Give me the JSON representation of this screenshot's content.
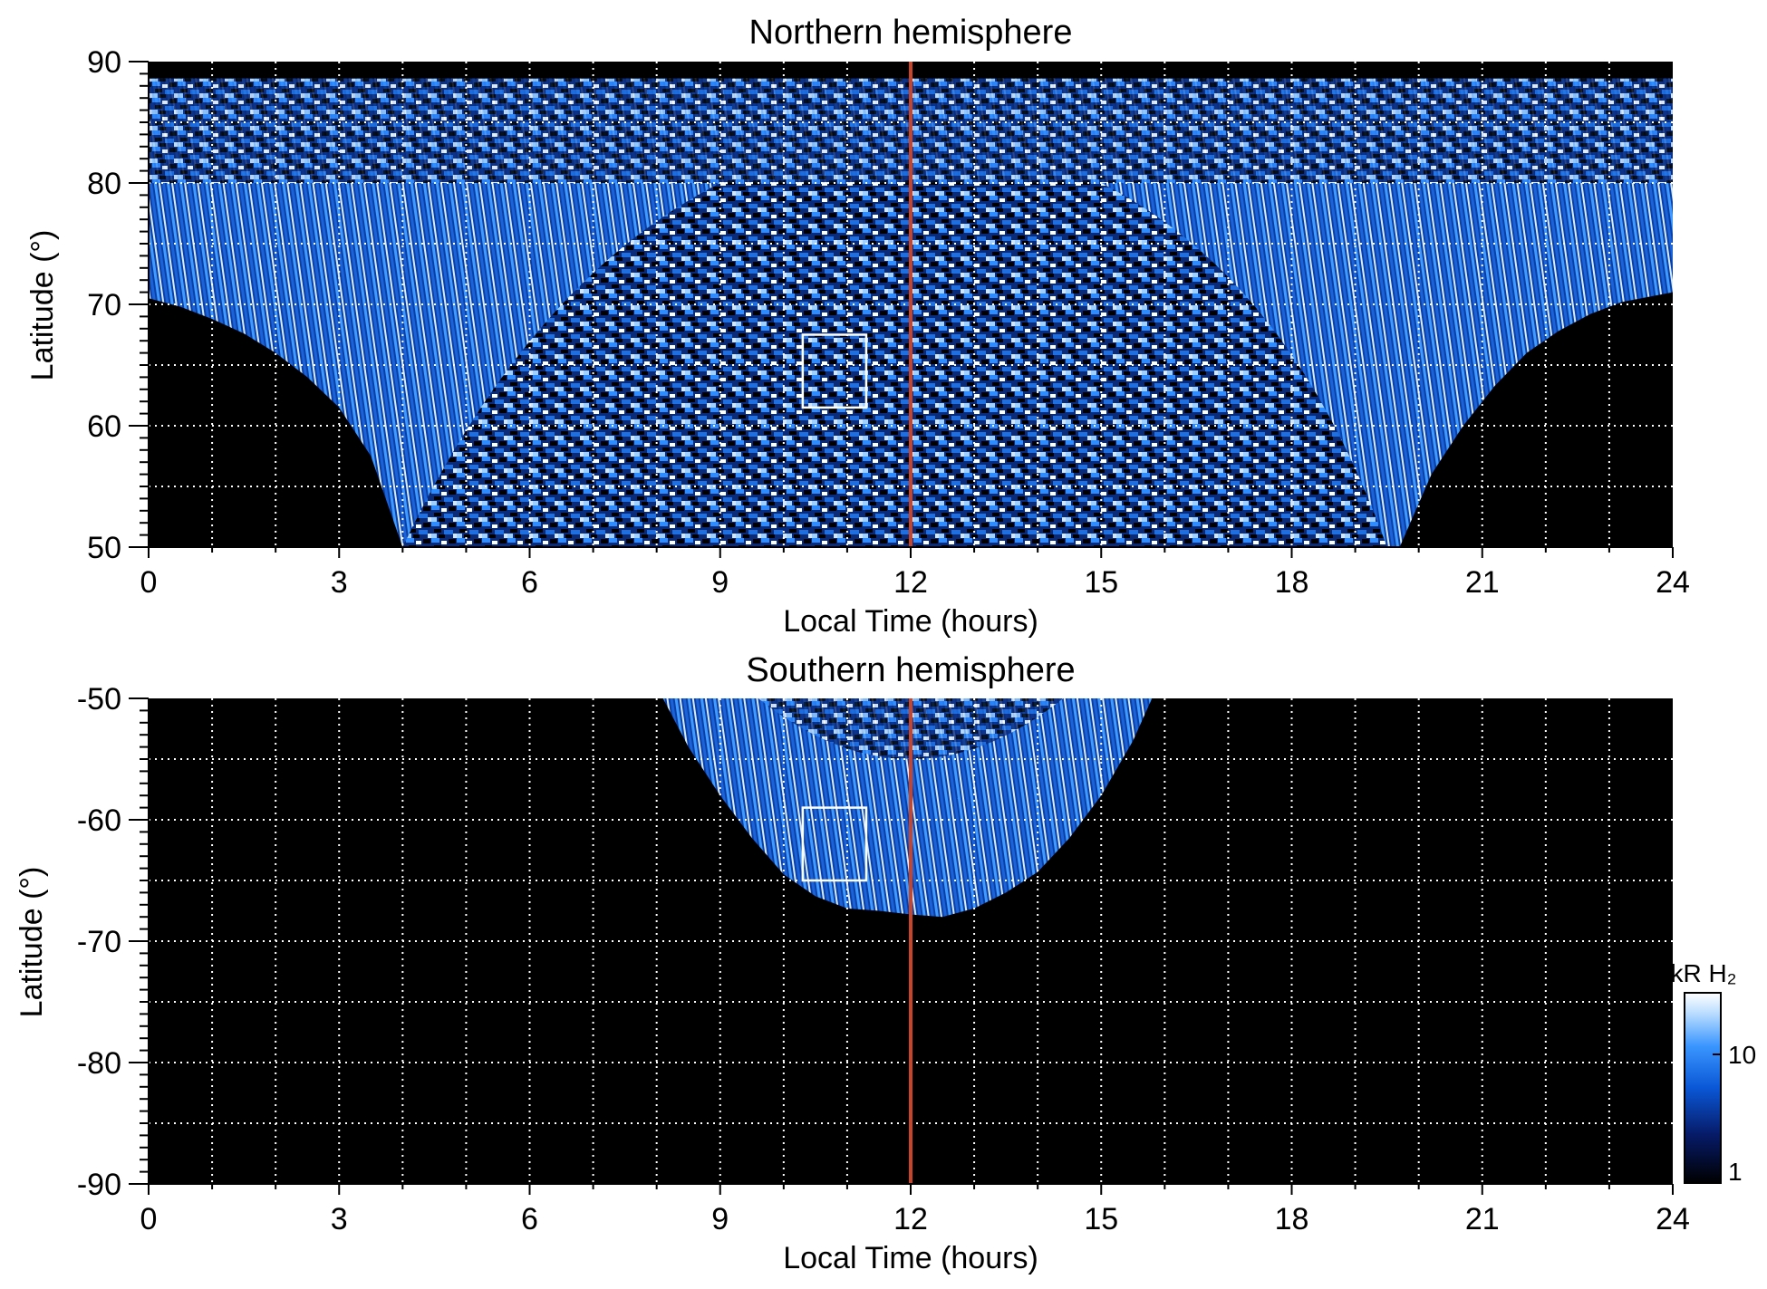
{
  "figure": {
    "x_tick_labels": [
      "0",
      "3",
      "6",
      "9",
      "12",
      "15",
      "18",
      "21",
      "24"
    ],
    "colorbar": {
      "label": "kR H₂",
      "tick_labels": [
        "10",
        "1"
      ],
      "scale": "log",
      "range": [
        1,
        30
      ],
      "colors": [
        "#000000",
        "#061a66",
        "#0a57d6",
        "#3a96ff",
        "#bfe0ff",
        "#ffffff"
      ]
    },
    "reference_line": {
      "x": 12,
      "color": "#c8452a"
    },
    "gridlines": {
      "style": "dotted",
      "color": "#ffffff"
    }
  },
  "chart_data": [
    {
      "type": "heatmap",
      "title": "Northern hemisphere",
      "xlabel": "Local Time (hours)",
      "ylabel": "Latitude (°)",
      "xlim": [
        0,
        24
      ],
      "ylim": [
        50,
        90
      ],
      "x_ticks": [
        0,
        3,
        6,
        9,
        12,
        15,
        18,
        21,
        24
      ],
      "y_ticks": [
        50,
        60,
        70,
        80,
        90
      ],
      "y_tick_labels": [
        "50",
        "60",
        "70",
        "80",
        "90"
      ],
      "grid": true,
      "x_grid": [
        1,
        2,
        3,
        4,
        5,
        6,
        7,
        8,
        9,
        10,
        11,
        12,
        13,
        14,
        15,
        16,
        17,
        18,
        19,
        20,
        21,
        22,
        23
      ],
      "y_grid": [
        55,
        60,
        65,
        70,
        75,
        80,
        85
      ],
      "coverage_lower_boundary_lat": [
        [
          0,
          70.5
        ],
        [
          0.5,
          69.8
        ],
        [
          1,
          68.8
        ],
        [
          1.5,
          67.6
        ],
        [
          2,
          66
        ],
        [
          2.5,
          64
        ],
        [
          3,
          61.5
        ],
        [
          3.5,
          57.5
        ],
        [
          4,
          50
        ],
        [
          19.7,
          50
        ],
        [
          20.2,
          56
        ],
        [
          20.7,
          60
        ],
        [
          21.2,
          63.3
        ],
        [
          21.7,
          66
        ],
        [
          22.2,
          67.8
        ],
        [
          22.7,
          69.2
        ],
        [
          23.2,
          70.2
        ],
        [
          24,
          71
        ]
      ],
      "peak_region": {
        "x": [
          4,
          19.5
        ],
        "lat": [
          50,
          80
        ]
      },
      "box": {
        "x": [
          10.3,
          11.3
        ],
        "lat": [
          61.5,
          67.5
        ]
      }
    },
    {
      "type": "heatmap",
      "title": "Southern hemisphere",
      "xlabel": "Local Time (hours)",
      "ylabel": "Latitude (°)",
      "xlim": [
        0,
        24
      ],
      "ylim": [
        -90,
        -50
      ],
      "x_ticks": [
        0,
        3,
        6,
        9,
        12,
        15,
        18,
        21,
        24
      ],
      "y_ticks": [
        -90,
        -80,
        -70,
        -60,
        -50
      ],
      "y_tick_labels": [
        "-90",
        "-80",
        "-70",
        "-60",
        "-50"
      ],
      "grid": true,
      "x_grid": [
        1,
        2,
        3,
        4,
        5,
        6,
        7,
        8,
        9,
        10,
        11,
        12,
        13,
        14,
        15,
        16,
        17,
        18,
        19,
        20,
        21,
        22,
        23
      ],
      "y_grid": [
        -85,
        -80,
        -75,
        -70,
        -65,
        -60,
        -55
      ],
      "coverage_boundary_lat": [
        [
          8.1,
          -50
        ],
        [
          8.5,
          -54
        ],
        [
          9,
          -58
        ],
        [
          9.5,
          -61.5
        ],
        [
          10,
          -64.5
        ],
        [
          10.5,
          -66.3
        ],
        [
          11,
          -67.3
        ],
        [
          11.5,
          -67.5
        ],
        [
          12,
          -67.8
        ],
        [
          12.5,
          -68
        ],
        [
          13,
          -67.3
        ],
        [
          13.5,
          -66
        ],
        [
          14,
          -64.3
        ],
        [
          14.5,
          -61.5
        ],
        [
          15,
          -58
        ],
        [
          15.5,
          -53.5
        ],
        [
          15.8,
          -50
        ]
      ],
      "box": {
        "x": [
          10.3,
          11.3
        ],
        "lat": [
          -65,
          -59
        ]
      }
    }
  ]
}
